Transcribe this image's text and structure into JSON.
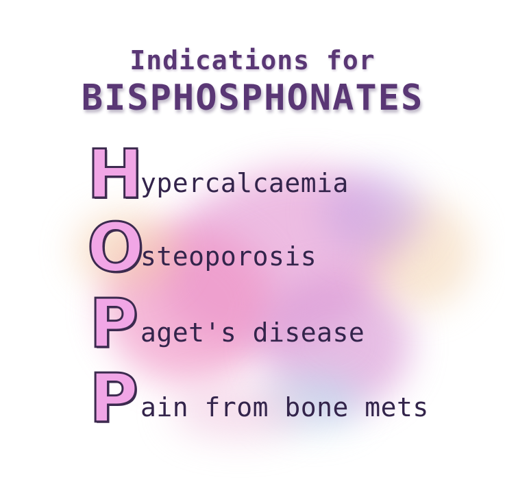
{
  "title": {
    "line1": "Indications for",
    "line2": "BISPHOSPHONATES"
  },
  "mnemonic": [
    {
      "letter": "H",
      "rest": "ypercalcaemia"
    },
    {
      "letter": "O",
      "rest": "steoporosis"
    },
    {
      "letter": "P",
      "rest": "aget's disease"
    },
    {
      "letter": "P",
      "rest": "ain from bone mets"
    }
  ],
  "colors": {
    "title": "#5a3775",
    "letter_fill": "#f1a6e6",
    "letter_outline": "#3c2a4f",
    "text": "#33244b"
  }
}
